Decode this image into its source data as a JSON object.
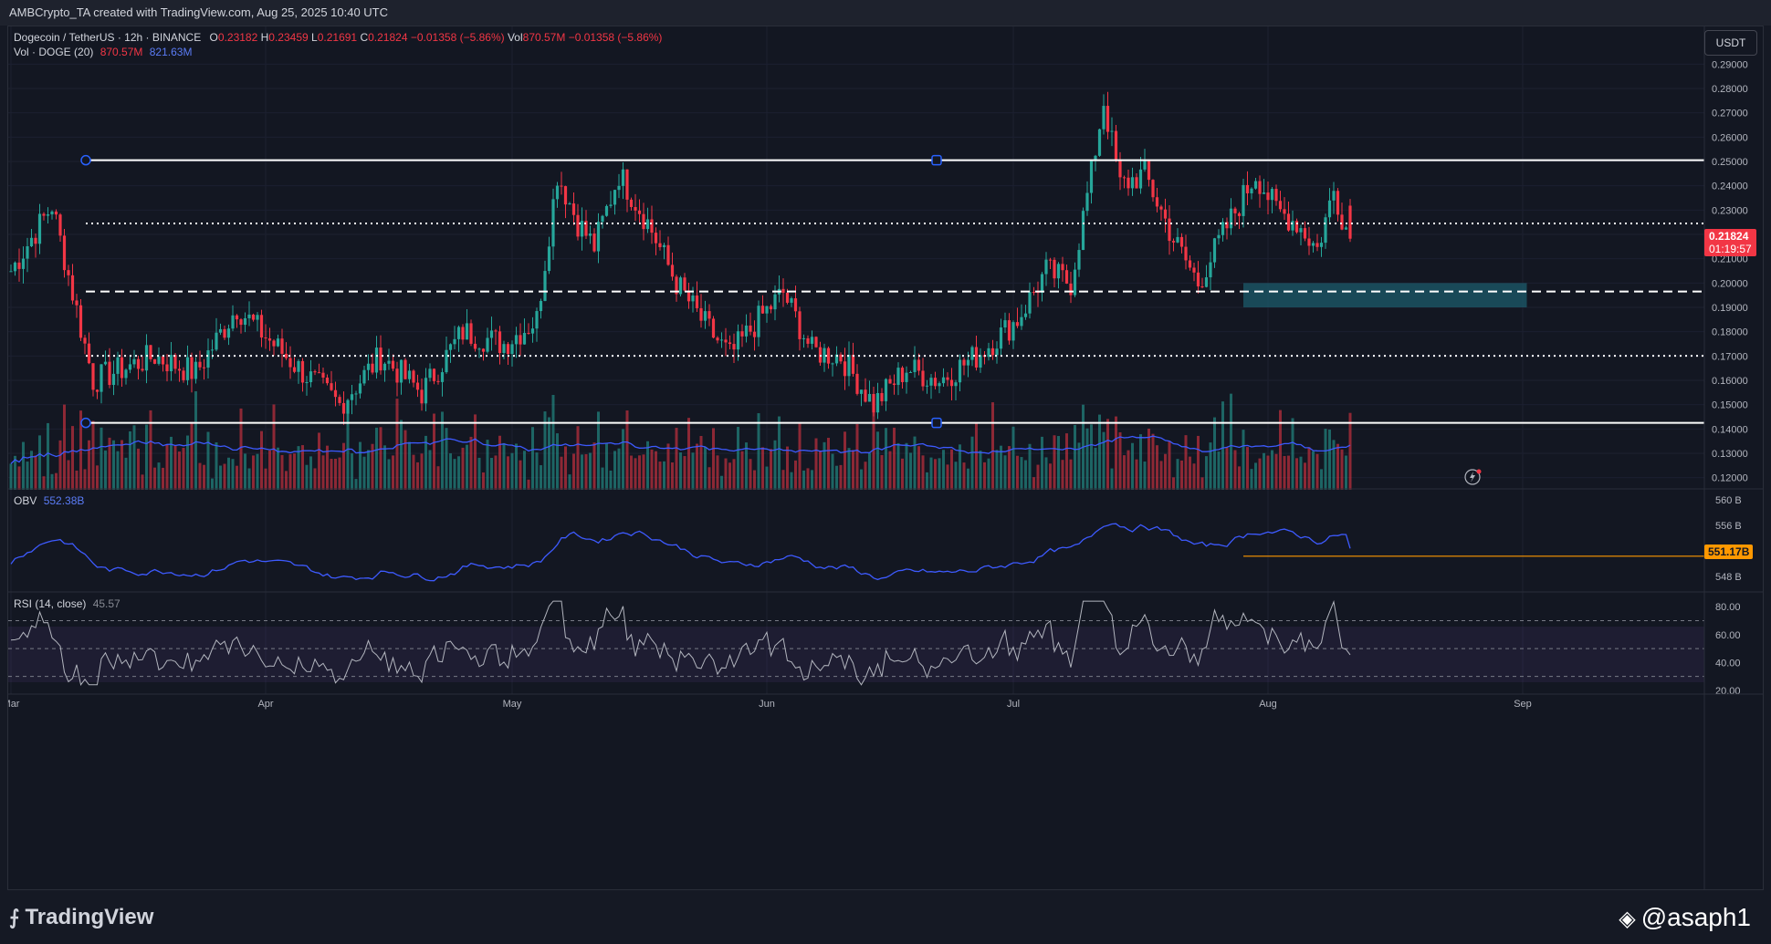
{
  "header": {
    "attribution": "AMBCrypto_TA created with TradingView.com, Aug 25, 2025 10:40 UTC"
  },
  "legend": {
    "symbol": "Dogecoin / TetherUS · 12h · BINANCE",
    "o_label": "O",
    "o_value": "0.23182",
    "h_label": "H",
    "h_value": "0.23459",
    "l_label": "L",
    "l_value": "0.21691",
    "c_label": "C",
    "c_value": "0.21824",
    "change": "−0.01358 (−5.86%)",
    "vol_label": "Vol",
    "vol_value": "870.57M",
    "vol_change": "−0.01358 (−5.86%)",
    "vol_line_label": "Vol · DOGE (20)",
    "vol_line_value": "870.57M",
    "vol_ma_value": "821.63M",
    "obv_label": "OBV",
    "obv_value": "552.38B",
    "rsi_label": "RSI (14, close)",
    "rsi_value": "45.57"
  },
  "currency_button": "USDT",
  "price_tag": {
    "price": "0.21824",
    "countdown": "01:19:57"
  },
  "obv_tag": "551.17B",
  "footer": {
    "brand": "TradingView",
    "handle": "@asaph1"
  },
  "colors": {
    "up": "#26a69a",
    "down": "#f23645",
    "ma": "#3d5afe",
    "obv": "#3d5afe",
    "rsi": "#b2b5be",
    "zone": "#1c5b6b",
    "tag_red": "#f23645",
    "tag_orange": "#ff9800"
  },
  "chart_data": {
    "type": "candlestick",
    "symbol": "Dogecoin / TetherUS",
    "interval": "12h",
    "exchange": "BINANCE",
    "x_axis_labels": [
      "Mar",
      "Apr",
      "May",
      "Jun",
      "Jul",
      "Aug",
      "Sep"
    ],
    "y_axis_ticks": [
      "0.29000",
      "0.28000",
      "0.27000",
      "0.26000",
      "0.25000",
      "0.24000",
      "0.23000",
      "0.22000",
      "0.21000",
      "0.20000",
      "0.19000",
      "0.18000",
      "0.17000",
      "0.16000",
      "0.15000",
      "0.14000",
      "0.13000",
      "0.12000"
    ],
    "ylim": [
      0.115,
      0.295
    ],
    "price_path": [
      [
        0,
        0.205
      ],
      [
        10,
        0.232
      ],
      [
        20,
        0.16
      ],
      [
        35,
        0.17
      ],
      [
        45,
        0.163
      ],
      [
        55,
        0.19
      ],
      [
        62,
        0.178
      ],
      [
        70,
        0.165
      ],
      [
        80,
        0.15
      ],
      [
        90,
        0.17
      ],
      [
        100,
        0.155
      ],
      [
        110,
        0.18
      ],
      [
        120,
        0.175
      ],
      [
        128,
        0.185
      ],
      [
        133,
        0.245
      ],
      [
        138,
        0.225
      ],
      [
        142,
        0.215
      ],
      [
        148,
        0.245
      ],
      [
        155,
        0.225
      ],
      [
        162,
        0.2
      ],
      [
        168,
        0.185
      ],
      [
        175,
        0.17
      ],
      [
        182,
        0.185
      ],
      [
        188,
        0.196
      ],
      [
        195,
        0.172
      ],
      [
        202,
        0.17
      ],
      [
        210,
        0.15
      ],
      [
        218,
        0.165
      ],
      [
        226,
        0.16
      ],
      [
        235,
        0.17
      ],
      [
        245,
        0.185
      ],
      [
        252,
        0.205
      ],
      [
        258,
        0.2
      ],
      [
        263,
        0.245
      ],
      [
        266,
        0.275
      ],
      [
        270,
        0.24
      ],
      [
        276,
        0.245
      ],
      [
        283,
        0.218
      ],
      [
        289,
        0.2
      ],
      [
        295,
        0.22
      ],
      [
        303,
        0.245
      ],
      [
        308,
        0.23
      ],
      [
        313,
        0.225
      ],
      [
        318,
        0.214
      ],
      [
        322,
        0.238
      ],
      [
        326,
        0.218
      ]
    ],
    "last_candle_index": 326,
    "x_months_at_candle": {
      "Mar": 0,
      "Apr": 62,
      "May": 122,
      "Jun": 184,
      "Jul": 244,
      "Aug": 306,
      "Sep": 368
    },
    "horizontal_levels": [
      {
        "price": 0.2505,
        "style": "solid"
      },
      {
        "price": 0.2245,
        "style": "dotted"
      },
      {
        "price": 0.1965,
        "style": "dashed"
      },
      {
        "price": 0.1701,
        "style": "dotted"
      },
      {
        "price": 0.1425,
        "style": "solid"
      }
    ],
    "demand_zone": {
      "from": 0.19,
      "to": 0.2
    },
    "volume_ma_period": 20,
    "obv": {
      "y_ticks": [
        "560 B",
        "556 B",
        "552 B",
        "548 B"
      ],
      "ylim": [
        546,
        561
      ],
      "last": 552.38,
      "level": 551.17
    },
    "rsi": {
      "y_ticks": [
        "80.00",
        "60.00",
        "40.00",
        "20.00"
      ],
      "ylim": [
        18,
        88
      ],
      "band_upper": 70,
      "band_mid": 50,
      "band_lower": 30,
      "last": 45.57
    }
  }
}
